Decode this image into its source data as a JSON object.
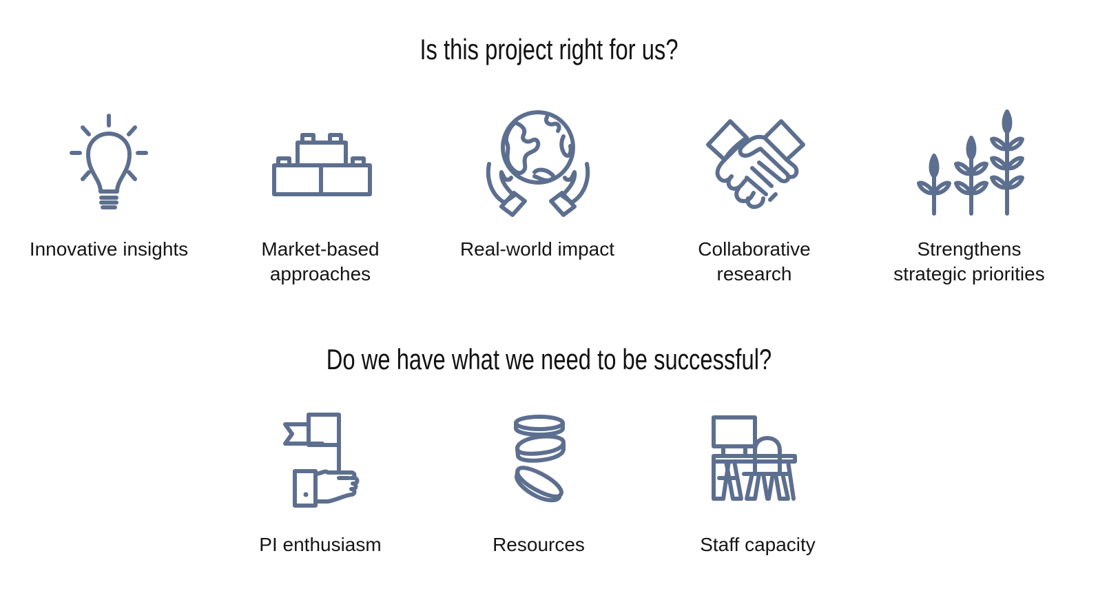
{
  "section1": {
    "title": "Is this project right for us?",
    "items": [
      {
        "label": "Innovative insights",
        "icon": "lightbulb-icon"
      },
      {
        "label": "Market-based\napproaches",
        "icon": "building-blocks-icon"
      },
      {
        "label": "Real-world impact",
        "icon": "globe-in-hands-icon"
      },
      {
        "label": "Collaborative\nresearch",
        "icon": "handshake-icon"
      },
      {
        "label": "Strengthens\nstrategic priorities",
        "icon": "growing-plants-icon"
      }
    ]
  },
  "section2": {
    "title": "Do we have what we need to be successful?",
    "items": [
      {
        "label": "PI enthusiasm",
        "icon": "hand-holding-flag-icon"
      },
      {
        "label": "Resources",
        "icon": "coins-icon"
      },
      {
        "label": "Staff capacity",
        "icon": "desk-workstation-icon"
      }
    ]
  },
  "colors": {
    "icon": "#5d6f8f",
    "text": "#111111",
    "background": "#ffffff"
  }
}
